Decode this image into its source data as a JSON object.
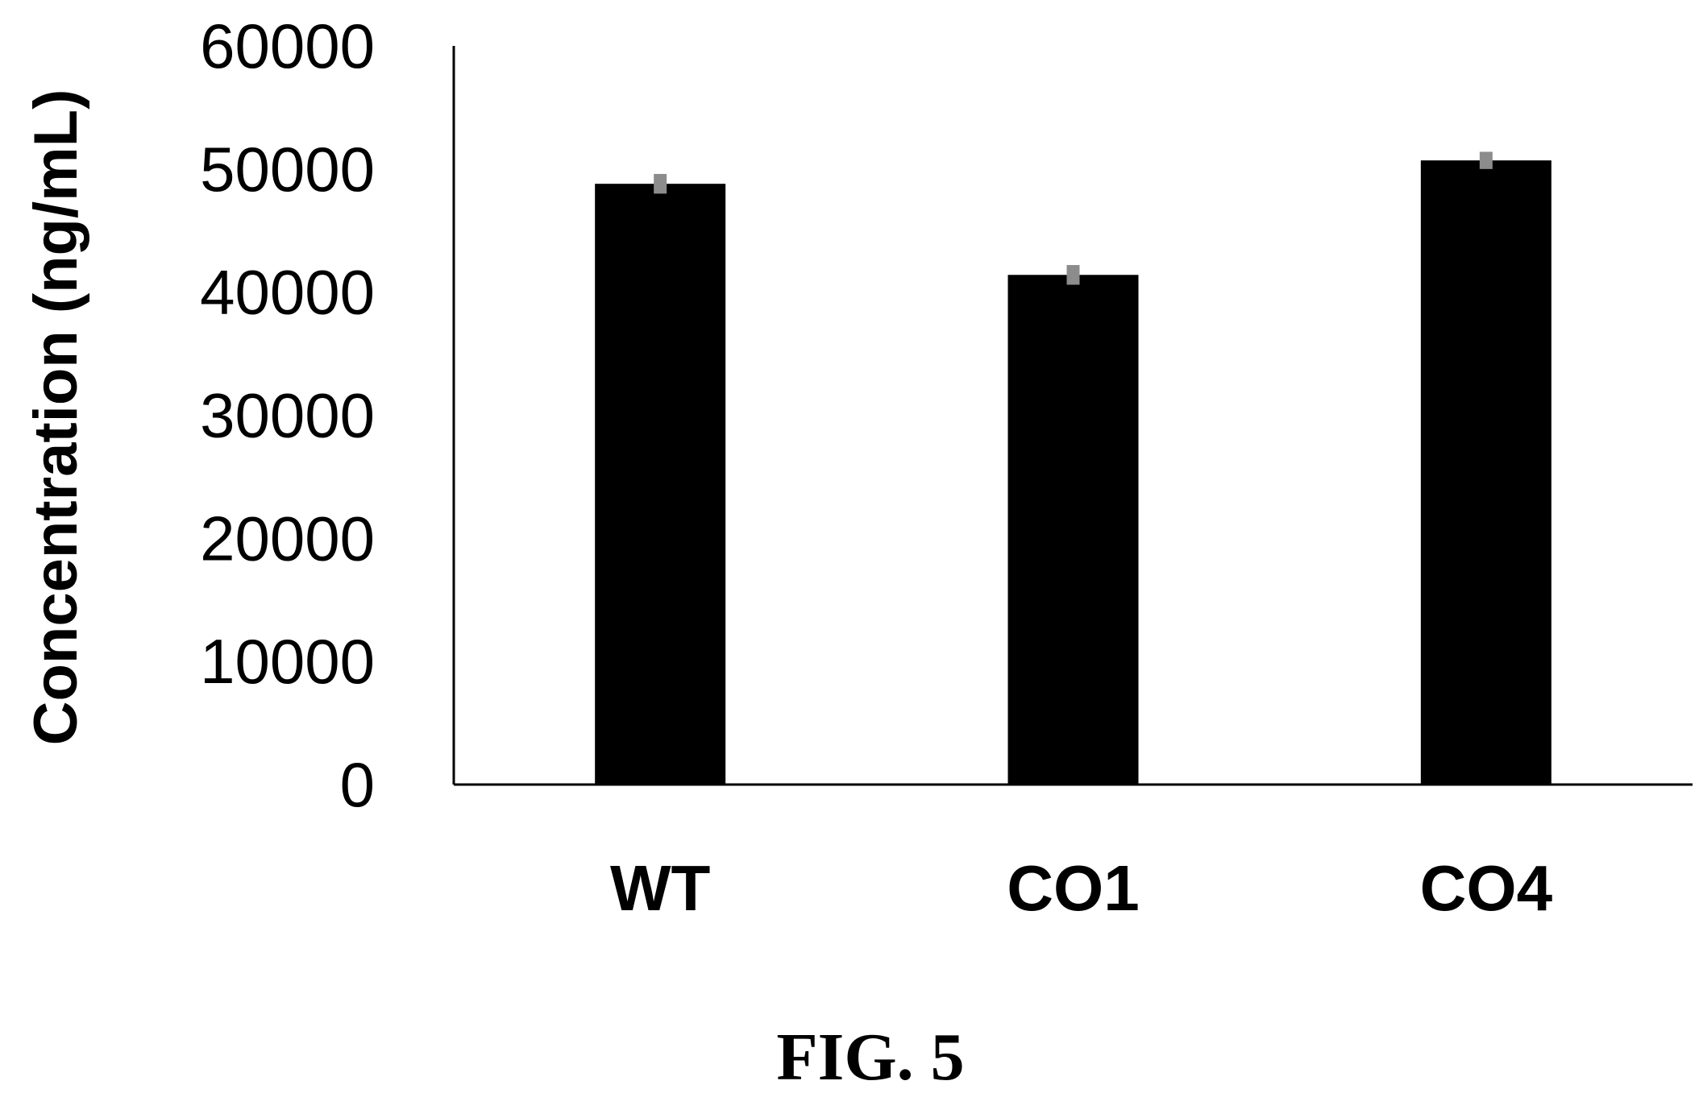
{
  "chart_data": {
    "type": "bar",
    "categories": [
      "WT",
      "CO1",
      "CO4"
    ],
    "values": [
      48800,
      41400,
      50700
    ],
    "error_bars": [
      800,
      800,
      700
    ],
    "ylabel": "Concentration (ng/mL)",
    "xlabel": "",
    "ylim": [
      0,
      60000
    ],
    "yticks": [
      0,
      10000,
      20000,
      30000,
      40000,
      50000,
      60000
    ],
    "grid": false,
    "bar_color": "#000000",
    "error_bar_color": "#8c8c8c"
  },
  "caption": "FIG. 5"
}
